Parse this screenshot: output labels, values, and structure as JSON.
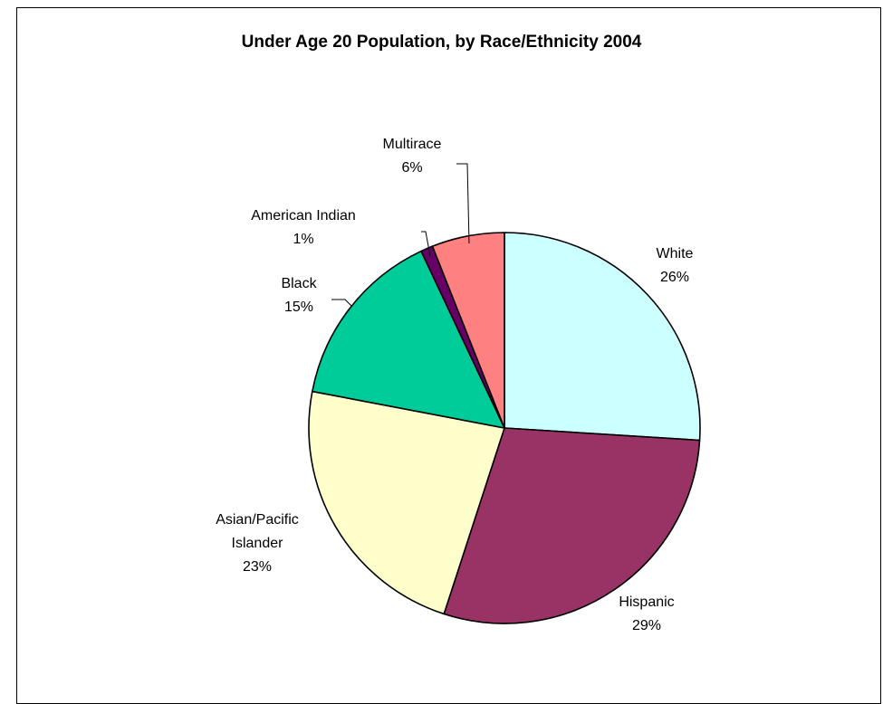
{
  "chart_data": {
    "type": "pie",
    "title": "Under Age 20 Population, by Race/Ethnicity 2004",
    "start": "12 o'clock",
    "direction": "clockwise",
    "categories": [
      "White",
      "Hispanic",
      "Asian/Pacific Islander",
      "Black",
      "American Indian",
      "Multirace"
    ],
    "values": [
      26,
      29,
      23,
      15,
      1,
      6
    ],
    "units": "%",
    "slices": [
      {
        "label": "White",
        "value": 26,
        "value_label": "26%",
        "color": "#CCFFFF"
      },
      {
        "label": "Hispanic",
        "value": 29,
        "value_label": "29%",
        "color": "#993366"
      },
      {
        "label": "Asian/Pacific Islander",
        "label_lines": [
          "Asian/Pacific",
          "Islander"
        ],
        "value": 23,
        "value_label": "23%",
        "color": "#FFFFCC"
      },
      {
        "label": "Black",
        "value": 15,
        "value_label": "15%",
        "color": "#00CC99"
      },
      {
        "label": "American Indian",
        "value": 1,
        "value_label": "1%",
        "color": "#660066"
      },
      {
        "label": "Multirace",
        "value": 6,
        "value_label": "6%",
        "color": "#FF8080"
      }
    ],
    "legend": "none",
    "label_style": "outside with leader lines"
  }
}
